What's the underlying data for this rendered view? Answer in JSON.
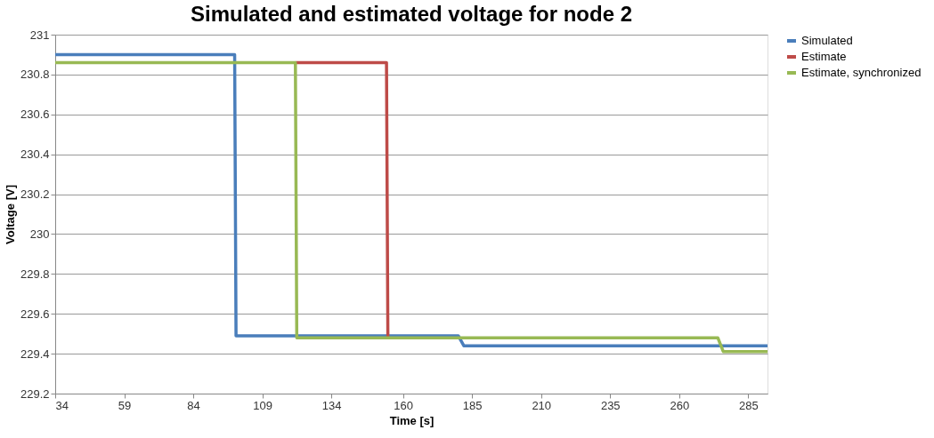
{
  "chart_data": {
    "type": "step",
    "title": "Simulated and estimated voltage for node 2",
    "xlabel": "Time [s]",
    "ylabel": "Voltage [V]",
    "series": [
      {
        "name": "Simulated",
        "color": "#4a7ebb",
        "x": [
          34,
          99,
          99.5,
          180,
          182,
          292
        ],
        "values": [
          230.9,
          230.9,
          229.49,
          229.49,
          229.44,
          229.44
        ]
      },
      {
        "name": "Estimate",
        "color": "#be4b48",
        "x": [
          121,
          154,
          154.5
        ],
        "values": [
          230.86,
          230.86,
          229.48
        ]
      },
      {
        "name": "Estimate, synchronized",
        "color": "#98b954",
        "x": [
          34,
          121,
          121.5,
          274,
          276,
          292
        ],
        "values": [
          230.86,
          230.86,
          229.48,
          229.48,
          229.41,
          229.41
        ]
      }
    ],
    "xlim": [
      34,
      292
    ],
    "xticks": [
      34,
      59,
      84,
      109,
      134,
      160,
      185,
      210,
      235,
      260,
      285
    ],
    "ylim": [
      229.2,
      231
    ],
    "yticks": [
      229.2,
      229.4,
      229.6,
      229.8,
      230,
      230.2,
      230.4,
      230.6,
      230.8,
      231
    ],
    "grid": "y",
    "legend": "right",
    "marker": "none",
    "line_style": "solid"
  }
}
